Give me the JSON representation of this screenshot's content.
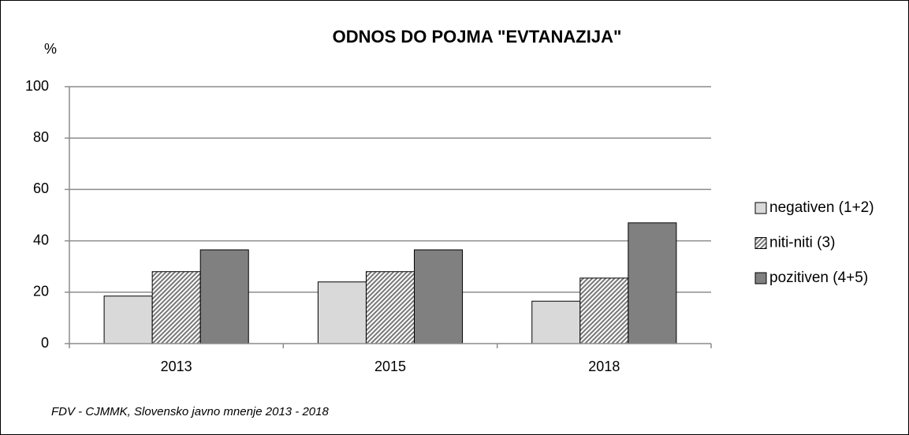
{
  "chart_data": {
    "type": "bar",
    "title": "ODNOS DO POJMA \"EVTANAZIJA\"",
    "y_label": "%",
    "source": "FDV - CJMMK, Slovensko javno mnenje 2013 - 2018",
    "categories": [
      "2013",
      "2015",
      "2018"
    ],
    "series": [
      {
        "name": "negativen (1+2)",
        "color": "#d9d9d9",
        "values": [
          18.5,
          24,
          16.5
        ]
      },
      {
        "name": "niti-niti (3)",
        "color": "#b0b0b0",
        "hatch": true,
        "values": [
          28,
          28,
          25.5
        ]
      },
      {
        "name": "pozitiven (4+5)",
        "color": "#808080",
        "values": [
          36.5,
          36.5,
          47
        ]
      }
    ],
    "ylim": [
      0,
      100
    ],
    "yticks": [
      0,
      20,
      40,
      60,
      80,
      100
    ],
    "grid": true,
    "legend": "right"
  }
}
